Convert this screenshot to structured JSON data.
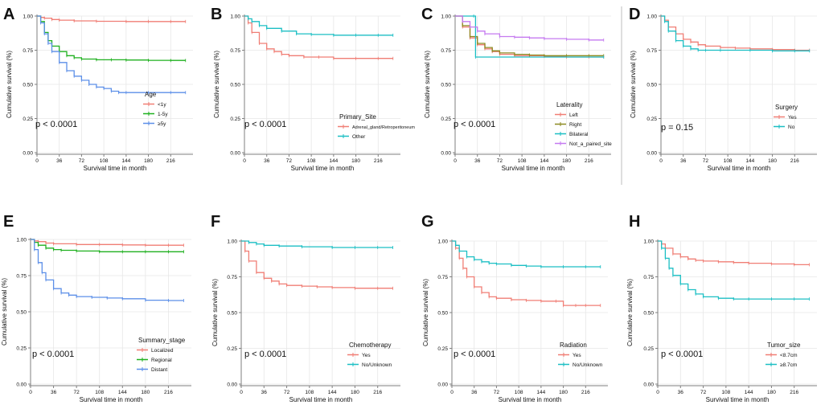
{
  "colors": {
    "red": "#F07E75",
    "green": "#1FB01F",
    "blue": "#5C8FE8",
    "cyan": "#1CBFC4",
    "olive": "#8C8A20",
    "purple": "#C57AF0",
    "grid": "#E7E7E7",
    "axis": "#7F7F7F"
  },
  "chart_data": [
    {
      "panel": "A",
      "type": "line",
      "title": "",
      "legend_title": "Age",
      "xlabel": "Survival time in month",
      "ylabel": "Cumulative survival (%)",
      "pvalue": "p < 0.0001",
      "xlim": [
        0,
        252
      ],
      "ylim": [
        0,
        1
      ],
      "x_ticks": [
        "0",
        "36",
        "72",
        "108",
        "144",
        "180",
        "216"
      ],
      "y_ticks": [
        "0.00",
        "0.25",
        "0.50",
        "0.75",
        "1.00"
      ],
      "series": [
        {
          "name": "<1y",
          "color": "red",
          "x": [
            0,
            6,
            12,
            24,
            36,
            60,
            96,
            144,
            180,
            216,
            240
          ],
          "y": [
            1.0,
            0.99,
            0.985,
            0.975,
            0.97,
            0.965,
            0.962,
            0.96,
            0.96,
            0.96,
            0.96
          ]
        },
        {
          "name": "1-5y",
          "color": "green",
          "x": [
            0,
            6,
            12,
            18,
            24,
            36,
            48,
            60,
            72,
            96,
            120,
            144,
            180,
            216,
            240
          ],
          "y": [
            1.0,
            0.96,
            0.88,
            0.82,
            0.78,
            0.74,
            0.71,
            0.695,
            0.685,
            0.68,
            0.68,
            0.678,
            0.676,
            0.675,
            0.675
          ]
        },
        {
          "name": "≥5y",
          "color": "blue",
          "x": [
            0,
            6,
            12,
            18,
            24,
            36,
            48,
            60,
            72,
            84,
            96,
            108,
            120,
            132,
            144,
            180,
            216,
            240
          ],
          "y": [
            1.0,
            0.95,
            0.87,
            0.8,
            0.74,
            0.66,
            0.6,
            0.56,
            0.53,
            0.5,
            0.48,
            0.47,
            0.45,
            0.44,
            0.44,
            0.44,
            0.44,
            0.44
          ]
        }
      ]
    },
    {
      "panel": "B",
      "type": "line",
      "title": "",
      "legend_title": "Primary_Site",
      "xlabel": "Survival time in month",
      "ylabel": "Cumulative survival (%)",
      "pvalue": "p < 0.0001",
      "xlim": [
        0,
        252
      ],
      "ylim": [
        0,
        1
      ],
      "x_ticks": [
        "0",
        "36",
        "72",
        "108",
        "144",
        "180",
        "216"
      ],
      "y_ticks": [
        "0.00",
        "0.25",
        "0.50",
        "0.75",
        "1.00"
      ],
      "series": [
        {
          "name": "Adrenal_gland/Retroperitoneum",
          "color": "red",
          "x": [
            0,
            6,
            12,
            24,
            36,
            48,
            60,
            72,
            96,
            120,
            144,
            180,
            216,
            240
          ],
          "y": [
            1.0,
            0.95,
            0.88,
            0.8,
            0.76,
            0.74,
            0.72,
            0.71,
            0.7,
            0.7,
            0.69,
            0.69,
            0.69,
            0.69
          ]
        },
        {
          "name": "Other",
          "color": "cyan",
          "x": [
            0,
            6,
            12,
            24,
            36,
            60,
            84,
            108,
            144,
            180,
            216,
            240
          ],
          "y": [
            1.0,
            0.98,
            0.96,
            0.93,
            0.91,
            0.89,
            0.87,
            0.865,
            0.86,
            0.86,
            0.86,
            0.86
          ]
        }
      ]
    },
    {
      "panel": "C",
      "type": "line",
      "title": "",
      "legend_title": "Laterality",
      "xlabel": "Survival time in month",
      "ylabel": "Cumulative survival (%)",
      "pvalue": "p < 0.0001",
      "xlim": [
        0,
        252
      ],
      "ylim": [
        0,
        1
      ],
      "x_ticks": [
        "0",
        "36",
        "72",
        "108",
        "144",
        "180",
        "216"
      ],
      "y_ticks": [
        "0.00",
        "0.25",
        "0.50",
        "0.75",
        "1.00"
      ],
      "series": [
        {
          "name": "Left",
          "color": "red",
          "x": [
            0,
            12,
            24,
            36,
            48,
            60,
            72,
            96,
            120,
            144,
            180,
            216,
            240
          ],
          "y": [
            1.0,
            0.92,
            0.84,
            0.79,
            0.76,
            0.74,
            0.72,
            0.71,
            0.71,
            0.705,
            0.7,
            0.7,
            0.7
          ]
        },
        {
          "name": "Right",
          "color": "olive",
          "x": [
            0,
            12,
            24,
            36,
            48,
            60,
            72,
            96,
            120,
            144,
            180,
            216,
            240
          ],
          "y": [
            1.0,
            0.93,
            0.85,
            0.8,
            0.77,
            0.745,
            0.73,
            0.72,
            0.715,
            0.71,
            0.71,
            0.71,
            0.71
          ]
        },
        {
          "name": "Bilateral",
          "color": "cyan",
          "step": true,
          "x": [
            0,
            30,
            33,
            240
          ],
          "y": [
            1.0,
            1.0,
            0.7,
            0.7
          ]
        },
        {
          "name": "Not_a_paired_site",
          "color": "purple",
          "x": [
            0,
            12,
            24,
            36,
            48,
            72,
            96,
            120,
            144,
            180,
            216,
            240
          ],
          "y": [
            1.0,
            0.96,
            0.92,
            0.89,
            0.87,
            0.85,
            0.845,
            0.84,
            0.835,
            0.83,
            0.825,
            0.825
          ]
        }
      ]
    },
    {
      "panel": "D",
      "type": "line",
      "title": "",
      "legend_title": "Surgery",
      "xlabel": "Survival time in month",
      "ylabel": "Cumulative survival (%)",
      "pvalue": "p = 0.15",
      "xlim": [
        0,
        252
      ],
      "ylim": [
        0,
        1
      ],
      "x_ticks": [
        "0",
        "36",
        "72",
        "108",
        "144",
        "180",
        "216"
      ],
      "y_ticks": [
        "0.00",
        "0.25",
        "0.50",
        "0.75",
        "1.00"
      ],
      "series": [
        {
          "name": "Yes",
          "color": "red",
          "x": [
            0,
            6,
            12,
            24,
            36,
            48,
            60,
            72,
            96,
            120,
            144,
            180,
            216,
            240
          ],
          "y": [
            1.0,
            0.97,
            0.92,
            0.87,
            0.83,
            0.81,
            0.79,
            0.78,
            0.77,
            0.765,
            0.76,
            0.755,
            0.75,
            0.75
          ]
        },
        {
          "name": "No",
          "color": "cyan",
          "x": [
            0,
            6,
            12,
            24,
            36,
            48,
            60,
            72,
            96,
            144,
            180,
            216,
            240
          ],
          "y": [
            1.0,
            0.96,
            0.89,
            0.82,
            0.78,
            0.76,
            0.75,
            0.75,
            0.75,
            0.75,
            0.745,
            0.745,
            0.745
          ]
        }
      ]
    },
    {
      "panel": "E",
      "type": "line",
      "title": "",
      "legend_title": "Summary_stage",
      "xlabel": "Survival time in month",
      "ylabel": "Cumulative survival (%)",
      "pvalue": "p < 0.0001",
      "xlim": [
        0,
        252
      ],
      "ylim": [
        0,
        1
      ],
      "x_ticks": [
        "0",
        "36",
        "72",
        "108",
        "144",
        "180",
        "216"
      ],
      "y_ticks": [
        "0.00",
        "0.25",
        "0.50",
        "0.75",
        "1.00"
      ],
      "series": [
        {
          "name": "Localized",
          "color": "red",
          "x": [
            0,
            6,
            12,
            24,
            36,
            72,
            108,
            144,
            180,
            216,
            240
          ],
          "y": [
            1.0,
            0.99,
            0.985,
            0.975,
            0.97,
            0.965,
            0.965,
            0.962,
            0.96,
            0.96,
            0.96
          ]
        },
        {
          "name": "Regional",
          "color": "green",
          "x": [
            0,
            6,
            12,
            24,
            36,
            48,
            72,
            108,
            144,
            180,
            216,
            240
          ],
          "y": [
            1.0,
            0.98,
            0.96,
            0.94,
            0.93,
            0.925,
            0.92,
            0.915,
            0.915,
            0.915,
            0.915,
            0.915
          ]
        },
        {
          "name": "Distant",
          "color": "blue",
          "x": [
            0,
            6,
            12,
            18,
            24,
            36,
            48,
            60,
            72,
            96,
            120,
            144,
            180,
            216,
            240
          ],
          "y": [
            1.0,
            0.93,
            0.84,
            0.77,
            0.72,
            0.66,
            0.63,
            0.615,
            0.605,
            0.6,
            0.595,
            0.59,
            0.58,
            0.578,
            0.578
          ]
        }
      ]
    },
    {
      "panel": "F",
      "type": "line",
      "title": "",
      "legend_title": "Chemotherapy",
      "xlabel": "Survival time in month",
      "ylabel": "Cumulative survival (%)",
      "pvalue": "p < 0.0001",
      "xlim": [
        0,
        252
      ],
      "ylim": [
        0,
        1
      ],
      "x_ticks": [
        "0",
        "36",
        "72",
        "108",
        "144",
        "180",
        "216"
      ],
      "y_ticks": [
        "0.00",
        "0.25",
        "0.50",
        "0.75",
        "1.00"
      ],
      "series": [
        {
          "name": "Yes",
          "color": "red",
          "x": [
            0,
            6,
            12,
            24,
            36,
            48,
            60,
            72,
            96,
            120,
            144,
            180,
            216,
            240
          ],
          "y": [
            1.0,
            0.93,
            0.86,
            0.78,
            0.74,
            0.72,
            0.7,
            0.69,
            0.685,
            0.68,
            0.675,
            0.67,
            0.67,
            0.67
          ]
        },
        {
          "name": "No/Unknown",
          "color": "cyan",
          "x": [
            0,
            12,
            24,
            36,
            60,
            96,
            144,
            180,
            216,
            240
          ],
          "y": [
            1.0,
            0.99,
            0.98,
            0.97,
            0.965,
            0.96,
            0.955,
            0.955,
            0.955,
            0.955
          ]
        }
      ]
    },
    {
      "panel": "G",
      "type": "line",
      "title": "",
      "legend_title": "Radiation",
      "xlabel": "Survival time in month",
      "ylabel": "Cumulative survival (%)",
      "pvalue": "p < 0.0001",
      "xlim": [
        0,
        252
      ],
      "ylim": [
        0,
        1
      ],
      "x_ticks": [
        "0",
        "36",
        "72",
        "108",
        "144",
        "180",
        "216"
      ],
      "y_ticks": [
        "0.00",
        "0.25",
        "0.50",
        "0.75",
        "1.00"
      ],
      "series": [
        {
          "name": "Yes",
          "color": "red",
          "x": [
            0,
            6,
            12,
            18,
            24,
            36,
            48,
            60,
            72,
            96,
            120,
            144,
            168,
            180,
            200,
            216,
            240
          ],
          "y": [
            1.0,
            0.95,
            0.88,
            0.81,
            0.75,
            0.68,
            0.64,
            0.61,
            0.6,
            0.59,
            0.585,
            0.58,
            0.58,
            0.55,
            0.55,
            0.55,
            0.55
          ]
        },
        {
          "name": "No/Unknown",
          "color": "cyan",
          "x": [
            0,
            6,
            12,
            24,
            36,
            48,
            60,
            72,
            96,
            120,
            144,
            180,
            216,
            240
          ],
          "y": [
            1.0,
            0.97,
            0.93,
            0.89,
            0.87,
            0.855,
            0.845,
            0.84,
            0.83,
            0.825,
            0.82,
            0.82,
            0.82,
            0.82
          ]
        }
      ]
    },
    {
      "panel": "H",
      "type": "line",
      "title": "",
      "legend_title": "Tumor_size",
      "xlabel": "Survival time in month",
      "ylabel": "Cumulative survival (%)",
      "pvalue": "p < 0.0001",
      "xlim": [
        0,
        252
      ],
      "ylim": [
        0,
        1
      ],
      "x_ticks": [
        "0",
        "36",
        "72",
        "108",
        "144",
        "180",
        "216"
      ],
      "y_ticks": [
        "0.00",
        "0.25",
        "0.50",
        "0.75",
        "1.00"
      ],
      "series": [
        {
          "name": "<8.7cm",
          "color": "red",
          "x": [
            0,
            6,
            12,
            24,
            36,
            48,
            60,
            72,
            96,
            120,
            144,
            180,
            216,
            240
          ],
          "y": [
            1.0,
            0.98,
            0.95,
            0.91,
            0.89,
            0.875,
            0.865,
            0.86,
            0.855,
            0.85,
            0.845,
            0.84,
            0.835,
            0.835
          ]
        },
        {
          "name": "≥8.7cm",
          "color": "cyan",
          "x": [
            0,
            6,
            12,
            18,
            24,
            36,
            48,
            60,
            72,
            96,
            120,
            144,
            180,
            216,
            240
          ],
          "y": [
            1.0,
            0.95,
            0.88,
            0.81,
            0.76,
            0.7,
            0.66,
            0.63,
            0.61,
            0.6,
            0.595,
            0.595,
            0.595,
            0.595,
            0.595
          ]
        }
      ]
    }
  ]
}
